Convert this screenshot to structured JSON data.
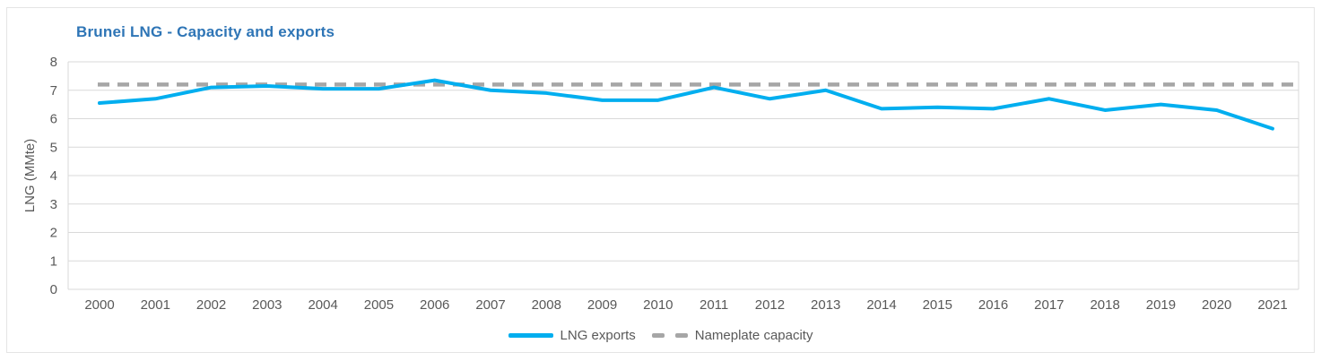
{
  "chart_data": {
    "type": "line",
    "title": "Brunei LNG - Capacity and exports",
    "ylabel": "LNG (MMte)",
    "xlabel": "",
    "ylim": [
      0,
      8
    ],
    "yticks": [
      0,
      1,
      2,
      3,
      4,
      5,
      6,
      7,
      8
    ],
    "grid": "horizontal",
    "legend_position": "bottom-center",
    "x": [
      "2000",
      "2001",
      "2002",
      "2003",
      "2004",
      "2005",
      "2006",
      "2007",
      "2008",
      "2009",
      "2010",
      "2011",
      "2012",
      "2013",
      "2014",
      "2015",
      "2016",
      "2017",
      "2018",
      "2019",
      "2020",
      "2021"
    ],
    "series": [
      {
        "name": "LNG exports",
        "style": "solid",
        "color": "#00AEEF",
        "values": [
          6.55,
          6.7,
          7.1,
          7.15,
          7.05,
          7.05,
          7.35,
          7.0,
          6.9,
          6.65,
          6.65,
          7.1,
          6.7,
          7.0,
          6.35,
          6.4,
          6.35,
          6.7,
          6.3,
          6.5,
          6.3,
          5.65
        ]
      },
      {
        "name": "Nameplate capacity",
        "style": "dashed",
        "color": "#A6A6A6",
        "constant": 7.2
      }
    ]
  },
  "colors": {
    "title": "#2E75B6",
    "axis_text": "#595959",
    "gridline": "#D9D9D9",
    "exports_line": "#00AEEF",
    "capacity_line": "#A6A6A6",
    "container_border": "#E4E4E4"
  }
}
